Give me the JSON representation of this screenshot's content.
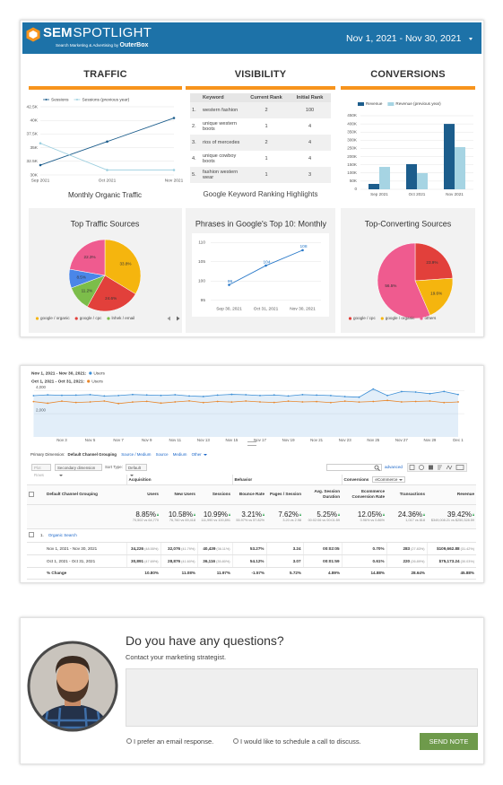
{
  "header": {
    "logo": "SEM",
    "logo_2": "SPOTLIGHT",
    "tagline": "Search Marketing & Advertising by",
    "brand": "OuterBox",
    "date_range": "Nov 1, 2021 - Nov 30, 2021"
  },
  "sections": [
    "TRAFFIC",
    "VISIBILITY",
    "CONVERSIONS"
  ],
  "keyword_table": {
    "columns": [
      "Keyword",
      "Current Rank",
      "Initial Rank"
    ],
    "rows": [
      [
        "1.",
        "western fashion",
        "2",
        "100"
      ],
      [
        "2.",
        "unique western boots",
        "1",
        "4"
      ],
      [
        "3.",
        "rios of mercedes",
        "2",
        "4"
      ],
      [
        "4.",
        "unique cowboy boots",
        "1",
        "4"
      ],
      [
        "5.",
        "fashion western wear",
        "1",
        "3"
      ]
    ],
    "caption": "Google Keyword Ranking Highlights"
  },
  "chart_data": [
    {
      "type": "line",
      "title": "Monthly Organic Traffic",
      "categories": [
        "Sep 2021",
        "Oct 2021",
        "Nov 2021"
      ],
      "series": [
        {
          "name": "Sessions",
          "color": "#1c5d8c",
          "values": [
            31800,
            36116,
            40439
          ]
        },
        {
          "name": "Sessions (previous year)",
          "color": "#9ccfdf",
          "values": [
            35800,
            30900,
            30900
          ]
        }
      ],
      "ylim": [
        30000,
        42500
      ],
      "yticks": [
        {
          "value": 30000,
          "label": "30K"
        },
        {
          "value": 32500,
          "label": "32.5K"
        },
        {
          "value": 35000,
          "label": "35K"
        },
        {
          "value": 37500,
          "label": "37.5K"
        },
        {
          "value": 40000,
          "label": "40K"
        },
        {
          "value": 42500,
          "label": "42.5K"
        }
      ],
      "grid": true,
      "legend": "top"
    },
    {
      "type": "bar",
      "categories": [
        "Sep 2021",
        "Oct 2021",
        "Nov 2021"
      ],
      "series": [
        {
          "name": "Revenue",
          "color": "#1c5d8c",
          "values": [
            33000,
            154000,
            400000
          ]
        },
        {
          "name": "Revenue (previous year)",
          "color": "#a6d4e3",
          "values": [
            137000,
            99000,
            258000
          ]
        }
      ],
      "ylim": [
        0,
        450000
      ],
      "yticks": [
        0,
        {
          "value": 50000,
          "label": "50K"
        },
        {
          "value": 100000,
          "label": "100K"
        },
        {
          "value": 150000,
          "label": "150K"
        },
        {
          "value": 200000,
          "label": "200K"
        },
        {
          "value": 250000,
          "label": "250K"
        },
        {
          "value": 300000,
          "label": "300K"
        },
        {
          "value": 350000,
          "label": "350K"
        },
        {
          "value": 400000,
          "label": "400K"
        },
        {
          "value": 450000,
          "label": "450K"
        }
      ],
      "grid": true,
      "legend": "top"
    },
    {
      "type": "pie",
      "title": "Top Traffic Sources",
      "categories": [
        "google / organic",
        "google / cpc",
        "lnhek / email",
        null,
        null
      ],
      "values": [
        33.8,
        24.6,
        11.2,
        8.5,
        22.3
      ],
      "value_labels": [
        "33.8%",
        "24.6%",
        "11.2%",
        "8.5%",
        "22.3%"
      ],
      "colors": [
        "#f5b50e",
        "#e2403b",
        "#7cbd4a",
        "#4a86e8",
        "#ef5b8f"
      ],
      "legend": "bottom"
    },
    {
      "type": "line",
      "title": "Phrases in Google's Top 10: Monthly",
      "categories": [
        "Sep 30, 2021",
        "Oct 31, 2021",
        "Nov 30, 2021"
      ],
      "series": [
        {
          "color": "#2979c9",
          "values": [
            99,
            104,
            108
          ]
        }
      ],
      "ylim": [
        94,
        111
      ],
      "yticks": [
        95,
        100,
        105,
        110
      ],
      "grid": true,
      "data_labels": true
    },
    {
      "type": "pie",
      "title": "Top-Converting Sources",
      "categories": [
        "google / cpc",
        "google / organic",
        "others"
      ],
      "values": [
        23.9,
        19.6,
        56.5
      ],
      "value_labels": [
        "23.9%",
        "19.6%",
        "56.5%"
      ],
      "colors": [
        "#e2403b",
        "#f5b50e",
        "#ef5b8f"
      ],
      "legend": "bottom"
    },
    {
      "type": "line",
      "categories": [
        null,
        null,
        "Nov 3",
        null,
        "Nov 5",
        null,
        "Nov 7",
        null,
        "Nov 9",
        null,
        "Nov 11",
        null,
        "Nov 13",
        null,
        "Nov 15",
        null,
        "Nov 17",
        null,
        "Nov 19",
        null,
        "Nov 21",
        null,
        "Nov 23",
        null,
        "Nov 25",
        null,
        "Nov 27",
        null,
        "Nov 29",
        null,
        "Dec 1"
      ],
      "series": [
        {
          "name": "Users",
          "period": "Nov 1, 2021 - Nov 30, 2021:",
          "color": "#3d8fd6",
          "area": true,
          "values": [
            3550,
            3620,
            3580,
            3600,
            3640,
            3520,
            3560,
            3650,
            3610,
            3570,
            3630,
            3520,
            3480,
            3600,
            3660,
            3630,
            3560,
            3610,
            3520,
            3640,
            3600,
            3560,
            3470,
            3420,
            4120,
            3560,
            3900,
            3860,
            3720,
            3910,
            3650
          ]
        },
        {
          "name": "Users",
          "period": "Oct 1, 2021 - Oct 31, 2021:",
          "color": "#e8862a",
          "values": [
            3040,
            2900,
            3080,
            2960,
            3010,
            3090,
            2870,
            3000,
            3060,
            2910,
            3010,
            3100,
            2950,
            3050,
            3000,
            3090,
            3010,
            2960,
            3080,
            3010,
            3040,
            2950,
            3080,
            3000,
            3050,
            3140,
            3010,
            3050,
            3090,
            2950,
            3010
          ]
        }
      ],
      "ylim": [
        0,
        4400
      ],
      "yticks": [
        {
          "value": 2000,
          "label": "2,000"
        },
        {
          "value": 4000,
          "label": "4,000"
        }
      ],
      "grid": true,
      "legend": "top-left"
    }
  ],
  "analytics": {
    "primary_dimension": {
      "label": "Primary Dimension:",
      "selected": "Default Channel Grouping",
      "options": [
        "Source / Medium",
        "Source",
        "Medium",
        "Other"
      ]
    },
    "toolbar": {
      "plot_rows": "Plot Rows",
      "secondary": "Secondary dimension",
      "sort_type": "Sort Type:",
      "sort_value": "Default",
      "advanced": "advanced"
    },
    "table": {
      "groups": [
        "Acquisition",
        "Behavior",
        "Conversions"
      ],
      "conversion_select": "eCommerce",
      "columns": [
        "Default Channel Grouping",
        "Users",
        "New Users",
        "Sessions",
        "Bounce Rate",
        "Pages / Session",
        "Avg. Session Duration",
        "Ecommerce Conversion Rate",
        "Transactions",
        "Revenue"
      ],
      "totals": [
        {
          "v": "8.85%",
          "s": "70,502 vs 64,770"
        },
        {
          "v": "10.58%",
          "s": "76,760 vs 69,418"
        },
        {
          "v": "10.99%",
          "s": "111,990 vs 100,891"
        },
        {
          "v": "3.21%",
          "s": "55.97% vs 57.82%"
        },
        {
          "v": "7.62%",
          "s": "3.20 vs 2.98"
        },
        {
          "v": "5.25%",
          "s": "00:02:06 vs 00:01:59"
        },
        {
          "v": "12.05%",
          "s": "0.96% vs 0.86%"
        },
        {
          "v": "24.36%",
          "s": "1,017 vs 818"
        },
        {
          "v": "39.42%",
          "s": "$349,008.21 vs $250,328.59"
        }
      ],
      "group_row": {
        "index": "1.",
        "name": "Organic Search"
      },
      "rows": [
        {
          "label": "Nov 1, 2021 - Nov 30, 2021",
          "cells": [
            {
              "v": "34,226",
              "s": "(48.55%)"
            },
            {
              "v": "32,076",
              "s": "(41.79%)"
            },
            {
              "v": "40,439",
              "s": "(36.11%)"
            },
            {
              "v": "53.27%"
            },
            {
              "v": "3.24"
            },
            {
              "v": "00:02:05"
            },
            {
              "v": "0.70%"
            },
            {
              "v": "283",
              "s": "(27.83%)"
            },
            {
              "v": "$109,662.88",
              "s": "(31.42%)"
            }
          ]
        },
        {
          "label": "Oct 1, 2021 - Oct 31, 2021",
          "cells": [
            {
              "v": "30,891",
              "s": "(47.69%)"
            },
            {
              "v": "28,876",
              "s": "(41.60%)"
            },
            {
              "v": "36,116",
              "s": "(35.80%)"
            },
            {
              "v": "54.12%"
            },
            {
              "v": "3.07"
            },
            {
              "v": "00:01:59"
            },
            {
              "v": "0.61%"
            },
            {
              "v": "220",
              "s": "(26.89%)"
            },
            {
              "v": "$75,173.24",
              "s": "(30.03%)"
            }
          ]
        }
      ],
      "change": {
        "label": "% Change",
        "cells": [
          "10.80%",
          "11.08%",
          "11.97%",
          "-1.57%",
          "5.72%",
          "4.89%",
          "14.88%",
          "28.64%",
          "45.88%"
        ]
      }
    }
  },
  "contact": {
    "title": "Do you have any questions?",
    "subtitle": "Contact your marketing strategist.",
    "options": [
      "I prefer an email response.",
      "I would like to schedule a call to discuss."
    ],
    "button": "SEND NOTE"
  }
}
